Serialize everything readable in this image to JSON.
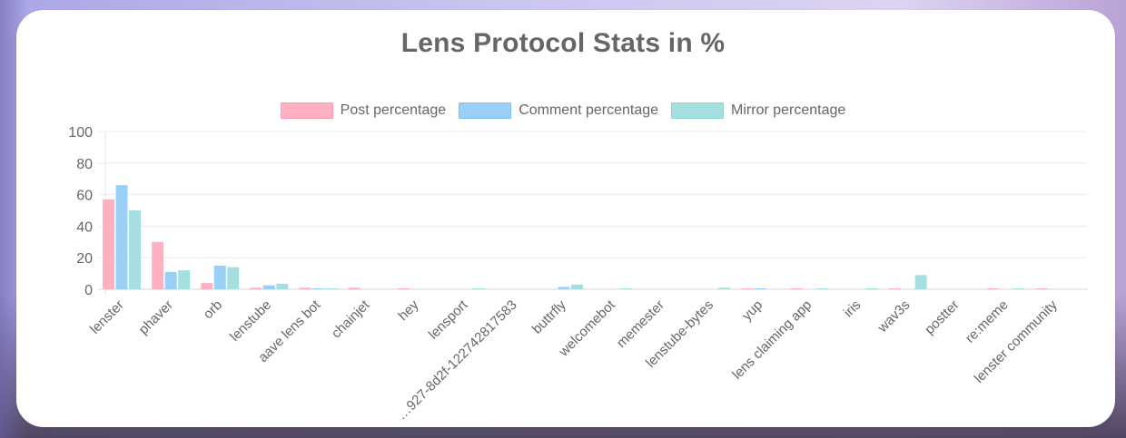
{
  "page": {
    "title": "Lens Protocol Stats in %"
  },
  "legend": [
    {
      "label": "Post percentage",
      "color": "#ffb1c1"
    },
    {
      "label": "Comment percentage",
      "color": "#9ad0f5"
    },
    {
      "label": "Mirror percentage",
      "color": "#a5dfdf"
    }
  ],
  "chart_data": {
    "type": "bar",
    "title": "Lens Protocol Stats in %",
    "xlabel": "",
    "ylabel": "",
    "ylim": [
      0,
      100
    ],
    "yticks": [
      0,
      20,
      40,
      60,
      80,
      100
    ],
    "grid": true,
    "legend_position": "top",
    "categories": [
      "lenster",
      "phaver",
      "orb",
      "lenstube",
      "aave lens bot",
      "chainjet",
      "hey",
      "lensport",
      "…927-8d2f-12274281​7583",
      "buttrfly",
      "welcomebot",
      "memester",
      "lenstube-bytes",
      "yup",
      "lens claiming app",
      "iris",
      "wav3s",
      "postter",
      "re:meme",
      "lenster community"
    ],
    "series": [
      {
        "name": "Post percentage",
        "color": "#ffb1c1",
        "values": [
          57,
          30,
          4,
          1,
          1,
          1,
          0.3,
          0,
          0,
          0,
          0,
          0,
          0,
          0.2,
          0.2,
          0,
          0.2,
          0,
          0.2,
          0.2
        ]
      },
      {
        "name": "Comment percentage",
        "color": "#9ad0f5",
        "values": [
          66,
          11,
          15,
          2.5,
          0.2,
          0,
          0,
          0,
          0,
          1.5,
          0,
          0,
          0,
          0.2,
          0,
          0,
          0,
          0,
          0,
          0
        ]
      },
      {
        "name": "Mirror percentage",
        "color": "#a5dfdf",
        "values": [
          50,
          12,
          14,
          3.5,
          0.2,
          0,
          0,
          0.2,
          0,
          3,
          0.2,
          0,
          1,
          0,
          0.2,
          0.2,
          9,
          0,
          0.2,
          0
        ]
      }
    ]
  }
}
